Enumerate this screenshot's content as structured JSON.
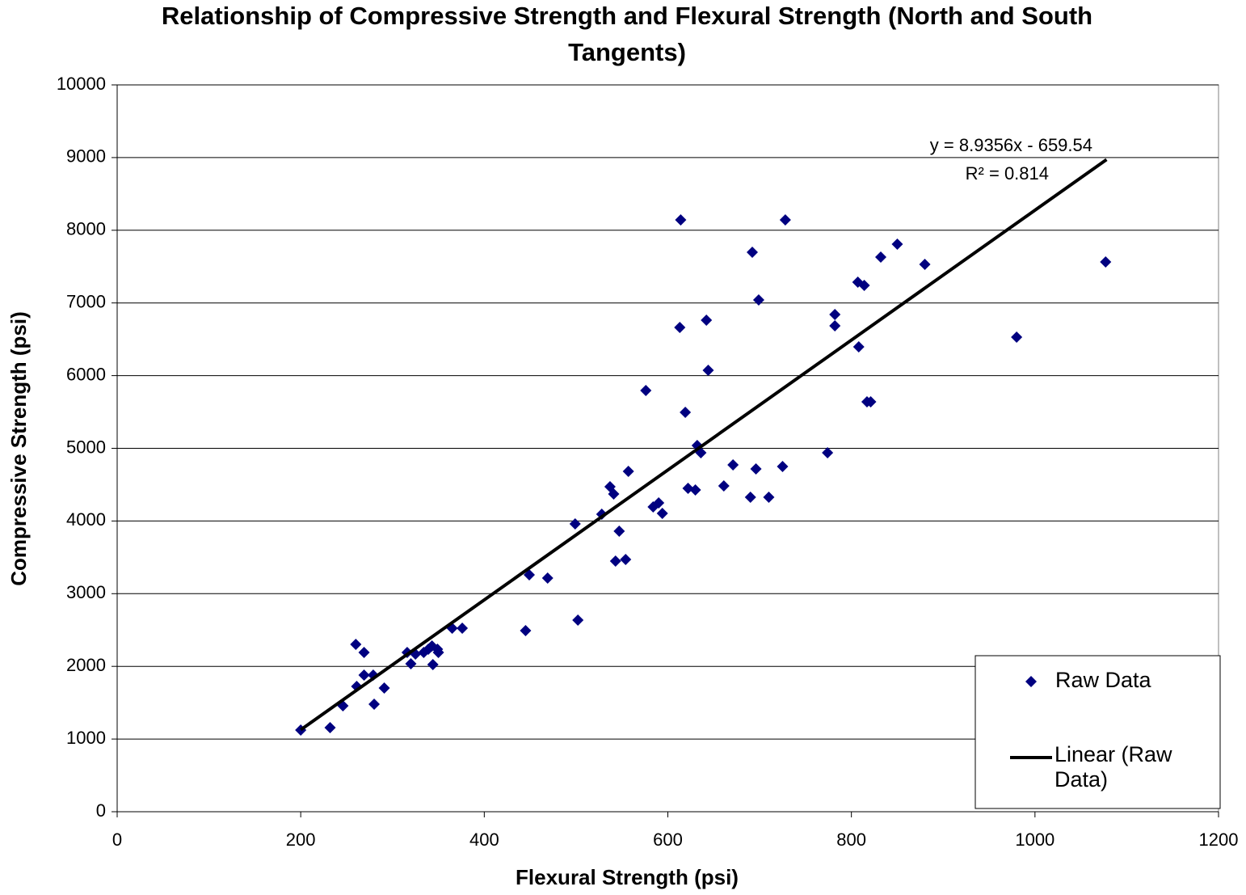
{
  "chart_data": {
    "type": "scatter",
    "title": "Relationship of Compressive Strength and Flexural Strength (North and South Tangents)",
    "xlabel": "Flexural Strength (psi)",
    "ylabel": "Compressive Strength (psi)",
    "xlim": [
      0,
      1200
    ],
    "xticks": [
      0,
      200,
      400,
      600,
      800,
      1000,
      1200
    ],
    "ylim": [
      0,
      10000
    ],
    "yticks": [
      0,
      1000,
      2000,
      3000,
      4000,
      5000,
      6000,
      7000,
      8000,
      9000,
      10000
    ],
    "grid": true,
    "legend": "lower right",
    "annotations": [
      "y = 8.9356x - 659.54",
      "R² = 0.814"
    ],
    "series": [
      {
        "name": "Raw Data",
        "color": "#000080",
        "x": [
          200,
          232,
          246,
          260,
          261,
          269,
          269,
          279,
          280,
          291,
          316,
          320,
          325,
          334,
          339,
          343,
          344,
          349,
          350,
          365,
          376,
          445,
          449,
          469,
          499,
          502,
          528,
          537,
          541,
          543,
          547,
          554,
          557,
          576,
          584,
          590,
          594,
          613,
          614,
          619,
          622,
          630,
          632,
          636,
          642,
          644,
          661,
          671,
          690,
          692,
          696,
          699,
          710,
          725,
          728,
          774,
          782,
          782,
          807,
          808,
          814,
          817,
          821,
          832,
          850,
          880,
          980,
          1077
        ],
        "values": [
          1123,
          1157,
          1457,
          2303,
          1724,
          2191,
          1880,
          1880,
          1479,
          1702,
          2191,
          2036,
          2169,
          2191,
          2236,
          2280,
          2024,
          2236,
          2191,
          2525,
          2525,
          2492,
          3259,
          3215,
          3960,
          2636,
          4093,
          4472,
          4372,
          3448,
          3860,
          3470,
          4683,
          5795,
          4194,
          4249,
          4105,
          6663,
          8142,
          5495,
          4449,
          4427,
          5039,
          4939,
          6763,
          6073,
          4483,
          4772,
          4327,
          7697,
          4716,
          7041,
          4327,
          4750,
          8142,
          4939,
          6841,
          6685,
          7286,
          6396,
          7241,
          5640,
          5640,
          7631,
          7809,
          7531,
          6530,
          7564
        ]
      },
      {
        "name": "Linear (Raw Data)",
        "color": "#000000",
        "x": [
          200,
          1078
        ],
        "values": [
          1127.58,
          8973.04
        ]
      }
    ]
  }
}
